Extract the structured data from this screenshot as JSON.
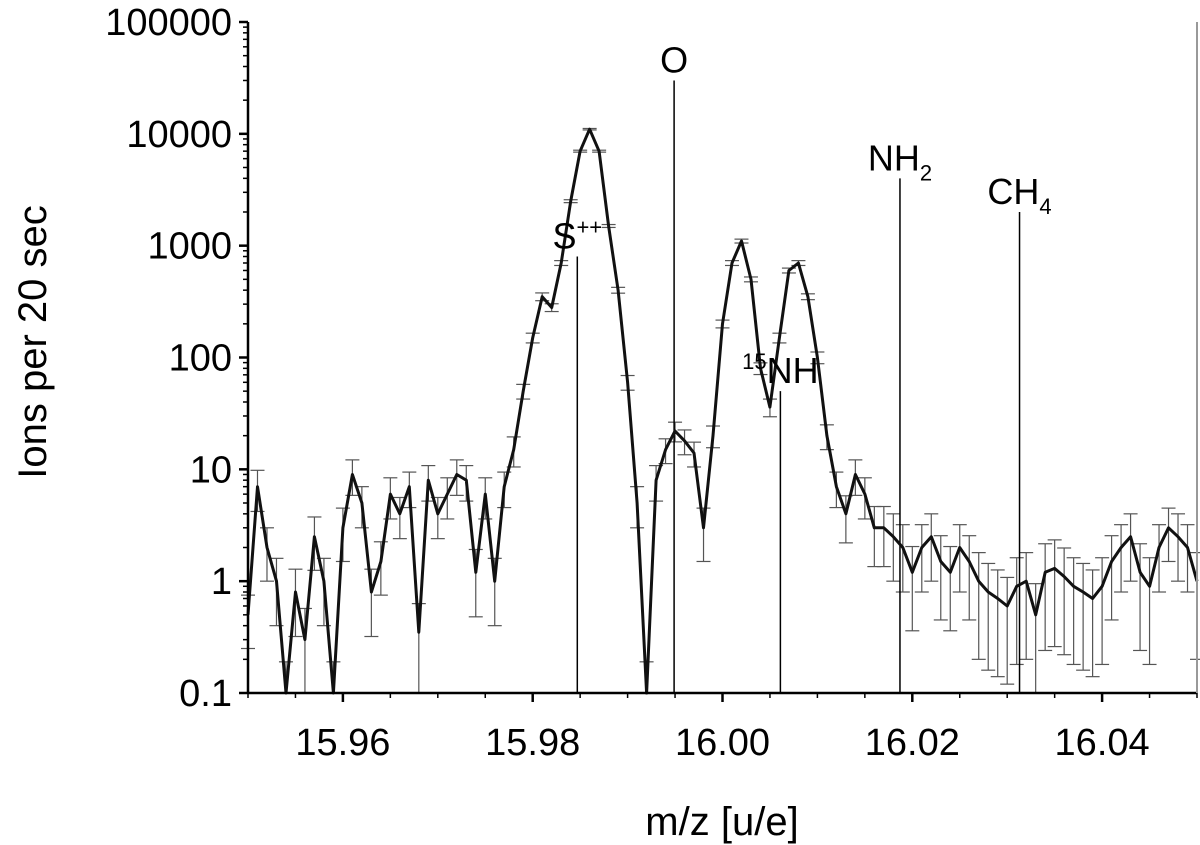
{
  "chart_data": {
    "type": "line",
    "xlabel": "m/z [u/e]",
    "ylabel": "Ions per 20 sec",
    "xlim": [
      15.95,
      16.05
    ],
    "ylim": [
      0.1,
      100000
    ],
    "yscale": "log",
    "x_ticks": [
      {
        "value": 15.96,
        "label": "15.96"
      },
      {
        "value": 15.98,
        "label": "15.98"
      },
      {
        "value": 16.0,
        "label": "16.00"
      },
      {
        "value": 16.02,
        "label": "16.02"
      },
      {
        "value": 16.04,
        "label": "16.04"
      }
    ],
    "y_ticks": [
      {
        "value": 0.1,
        "label": "0.1"
      },
      {
        "value": 1,
        "label": "1"
      },
      {
        "value": 10,
        "label": "10"
      },
      {
        "value": 100,
        "label": "100"
      },
      {
        "value": 1000,
        "label": "1000"
      },
      {
        "value": 10000,
        "label": "10000"
      },
      {
        "value": 100000,
        "label": "100000"
      }
    ],
    "colors": {
      "line": "#111111",
      "errorbar": "#555555",
      "marker_line": "#000000"
    },
    "peaks": [
      {
        "x": 15.9847,
        "top": 800,
        "name": "S",
        "sup": "++",
        "sub": "",
        "pre": ""
      },
      {
        "x": 15.9949,
        "top": 30000,
        "name": "O",
        "sup": "",
        "sub": "",
        "pre": ""
      },
      {
        "x": 16.0061,
        "top": 50,
        "name": "NH",
        "sup": "",
        "sub": "",
        "pre": "15"
      },
      {
        "x": 16.0187,
        "top": 4000,
        "name": "NH",
        "sup": "",
        "sub": "2",
        "pre": ""
      },
      {
        "x": 16.0313,
        "top": 2000,
        "name": "CH",
        "sup": "",
        "sub": "4",
        "pre": ""
      }
    ],
    "x": [
      15.95,
      15.951,
      15.952,
      15.953,
      15.954,
      15.955,
      15.956,
      15.957,
      15.958,
      15.959,
      15.96,
      15.961,
      15.962,
      15.963,
      15.964,
      15.965,
      15.966,
      15.967,
      15.968,
      15.969,
      15.97,
      15.971,
      15.972,
      15.973,
      15.974,
      15.975,
      15.976,
      15.977,
      15.978,
      15.979,
      15.98,
      15.981,
      15.982,
      15.983,
      15.984,
      15.985,
      15.986,
      15.987,
      15.988,
      15.989,
      15.99,
      15.991,
      15.992,
      15.993,
      15.994,
      15.995,
      15.996,
      15.997,
      15.998,
      15.999,
      16.0,
      16.001,
      16.002,
      16.003,
      16.004,
      16.005,
      16.006,
      16.007,
      16.008,
      16.009,
      16.01,
      16.011,
      16.012,
      16.013,
      16.014,
      16.015,
      16.016,
      16.017,
      16.018,
      16.019,
      16.02,
      16.021,
      16.022,
      16.023,
      16.024,
      16.025,
      16.026,
      16.027,
      16.028,
      16.029,
      16.03,
      16.031,
      16.032,
      16.033,
      16.034,
      16.035,
      16.036,
      16.037,
      16.038,
      16.039,
      16.04,
      16.041,
      16.042,
      16.043,
      16.044,
      16.045,
      16.046,
      16.047,
      16.048,
      16.049,
      16.05
    ],
    "y": [
      0.5,
      7,
      2,
      1,
      0.1,
      0.8,
      0.3,
      2.5,
      1,
      0.1,
      3,
      9,
      5,
      0.8,
      1.5,
      6,
      4,
      7,
      0.35,
      8,
      4,
      6,
      9,
      8,
      1.2,
      6,
      1,
      7,
      15,
      50,
      150,
      350,
      280,
      700,
      2500,
      7000,
      11000,
      7000,
      1500,
      400,
      60,
      5,
      0.1,
      8,
      15,
      22,
      18,
      14,
      3,
      20,
      200,
      700,
      1100,
      500,
      80,
      36,
      150,
      600,
      700,
      350,
      100,
      20,
      7,
      4,
      9,
      6,
      3,
      3,
      2.5,
      2,
      1.2,
      2,
      2.5,
      1.5,
      1.2,
      2,
      1.5,
      1,
      0.8,
      0.7,
      0.6,
      0.9,
      1,
      0.5,
      1.2,
      1.3,
      1.1,
      0.9,
      0.8,
      0.7,
      0.9,
      1.5,
      2,
      2.5,
      1.2,
      0.9,
      2,
      3,
      2.5,
      2,
      1
    ],
    "y_err_frac": [
      0.5,
      0.4,
      0.5,
      0.6,
      0.9,
      0.6,
      0.9,
      0.5,
      0.6,
      0.9,
      0.5,
      0.35,
      0.4,
      0.6,
      0.5,
      0.4,
      0.4,
      0.35,
      0.8,
      0.35,
      0.4,
      0.4,
      0.35,
      0.35,
      0.6,
      0.4,
      0.6,
      0.35,
      0.3,
      0.15,
      0.1,
      0.08,
      0.08,
      0.05,
      0.03,
      0.02,
      0.015,
      0.02,
      0.03,
      0.06,
      0.15,
      0.4,
      0.9,
      0.35,
      0.25,
      0.2,
      0.25,
      0.25,
      0.5,
      0.22,
      0.08,
      0.05,
      0.04,
      0.05,
      0.12,
      0.18,
      0.1,
      0.05,
      0.05,
      0.06,
      0.12,
      0.25,
      0.35,
      0.45,
      0.35,
      0.4,
      0.55,
      0.55,
      0.6,
      0.6,
      0.7,
      0.6,
      0.6,
      0.7,
      0.7,
      0.6,
      0.7,
      0.8,
      0.8,
      0.8,
      0.8,
      0.8,
      0.8,
      0.9,
      0.8,
      0.8,
      0.8,
      0.8,
      0.8,
      0.8,
      0.8,
      0.7,
      0.6,
      0.6,
      0.8,
      0.8,
      0.6,
      0.5,
      0.6,
      0.6,
      0.8
    ]
  }
}
